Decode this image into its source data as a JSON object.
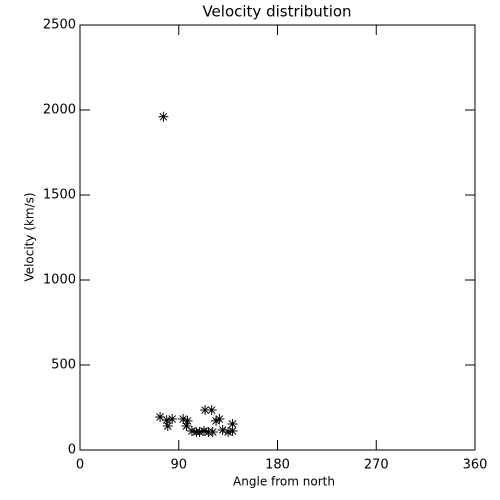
{
  "chart_data": {
    "type": "scatter",
    "title": "Velocity distribution",
    "x_label": "Angle from north",
    "y_label": "Velocity (km/s)",
    "xlim": [
      0,
      360
    ],
    "xticks": [
      0,
      90,
      180,
      270,
      360
    ],
    "ylim": [
      0,
      2500
    ],
    "yticks": [
      0,
      500,
      1000,
      1500,
      2000,
      2500
    ],
    "marker": "asterisk",
    "color": "#000000",
    "x": [
      76,
      73,
      79,
      80,
      84,
      94,
      98,
      97,
      102,
      106,
      109,
      113,
      117,
      114,
      120,
      124,
      127,
      121,
      130,
      135,
      139,
      139
    ],
    "values": [
      1960,
      194,
      176,
      141,
      182,
      182,
      171,
      141,
      112,
      106,
      106,
      112,
      106,
      235,
      235,
      171,
      182,
      106,
      118,
      106,
      153,
      112
    ]
  }
}
